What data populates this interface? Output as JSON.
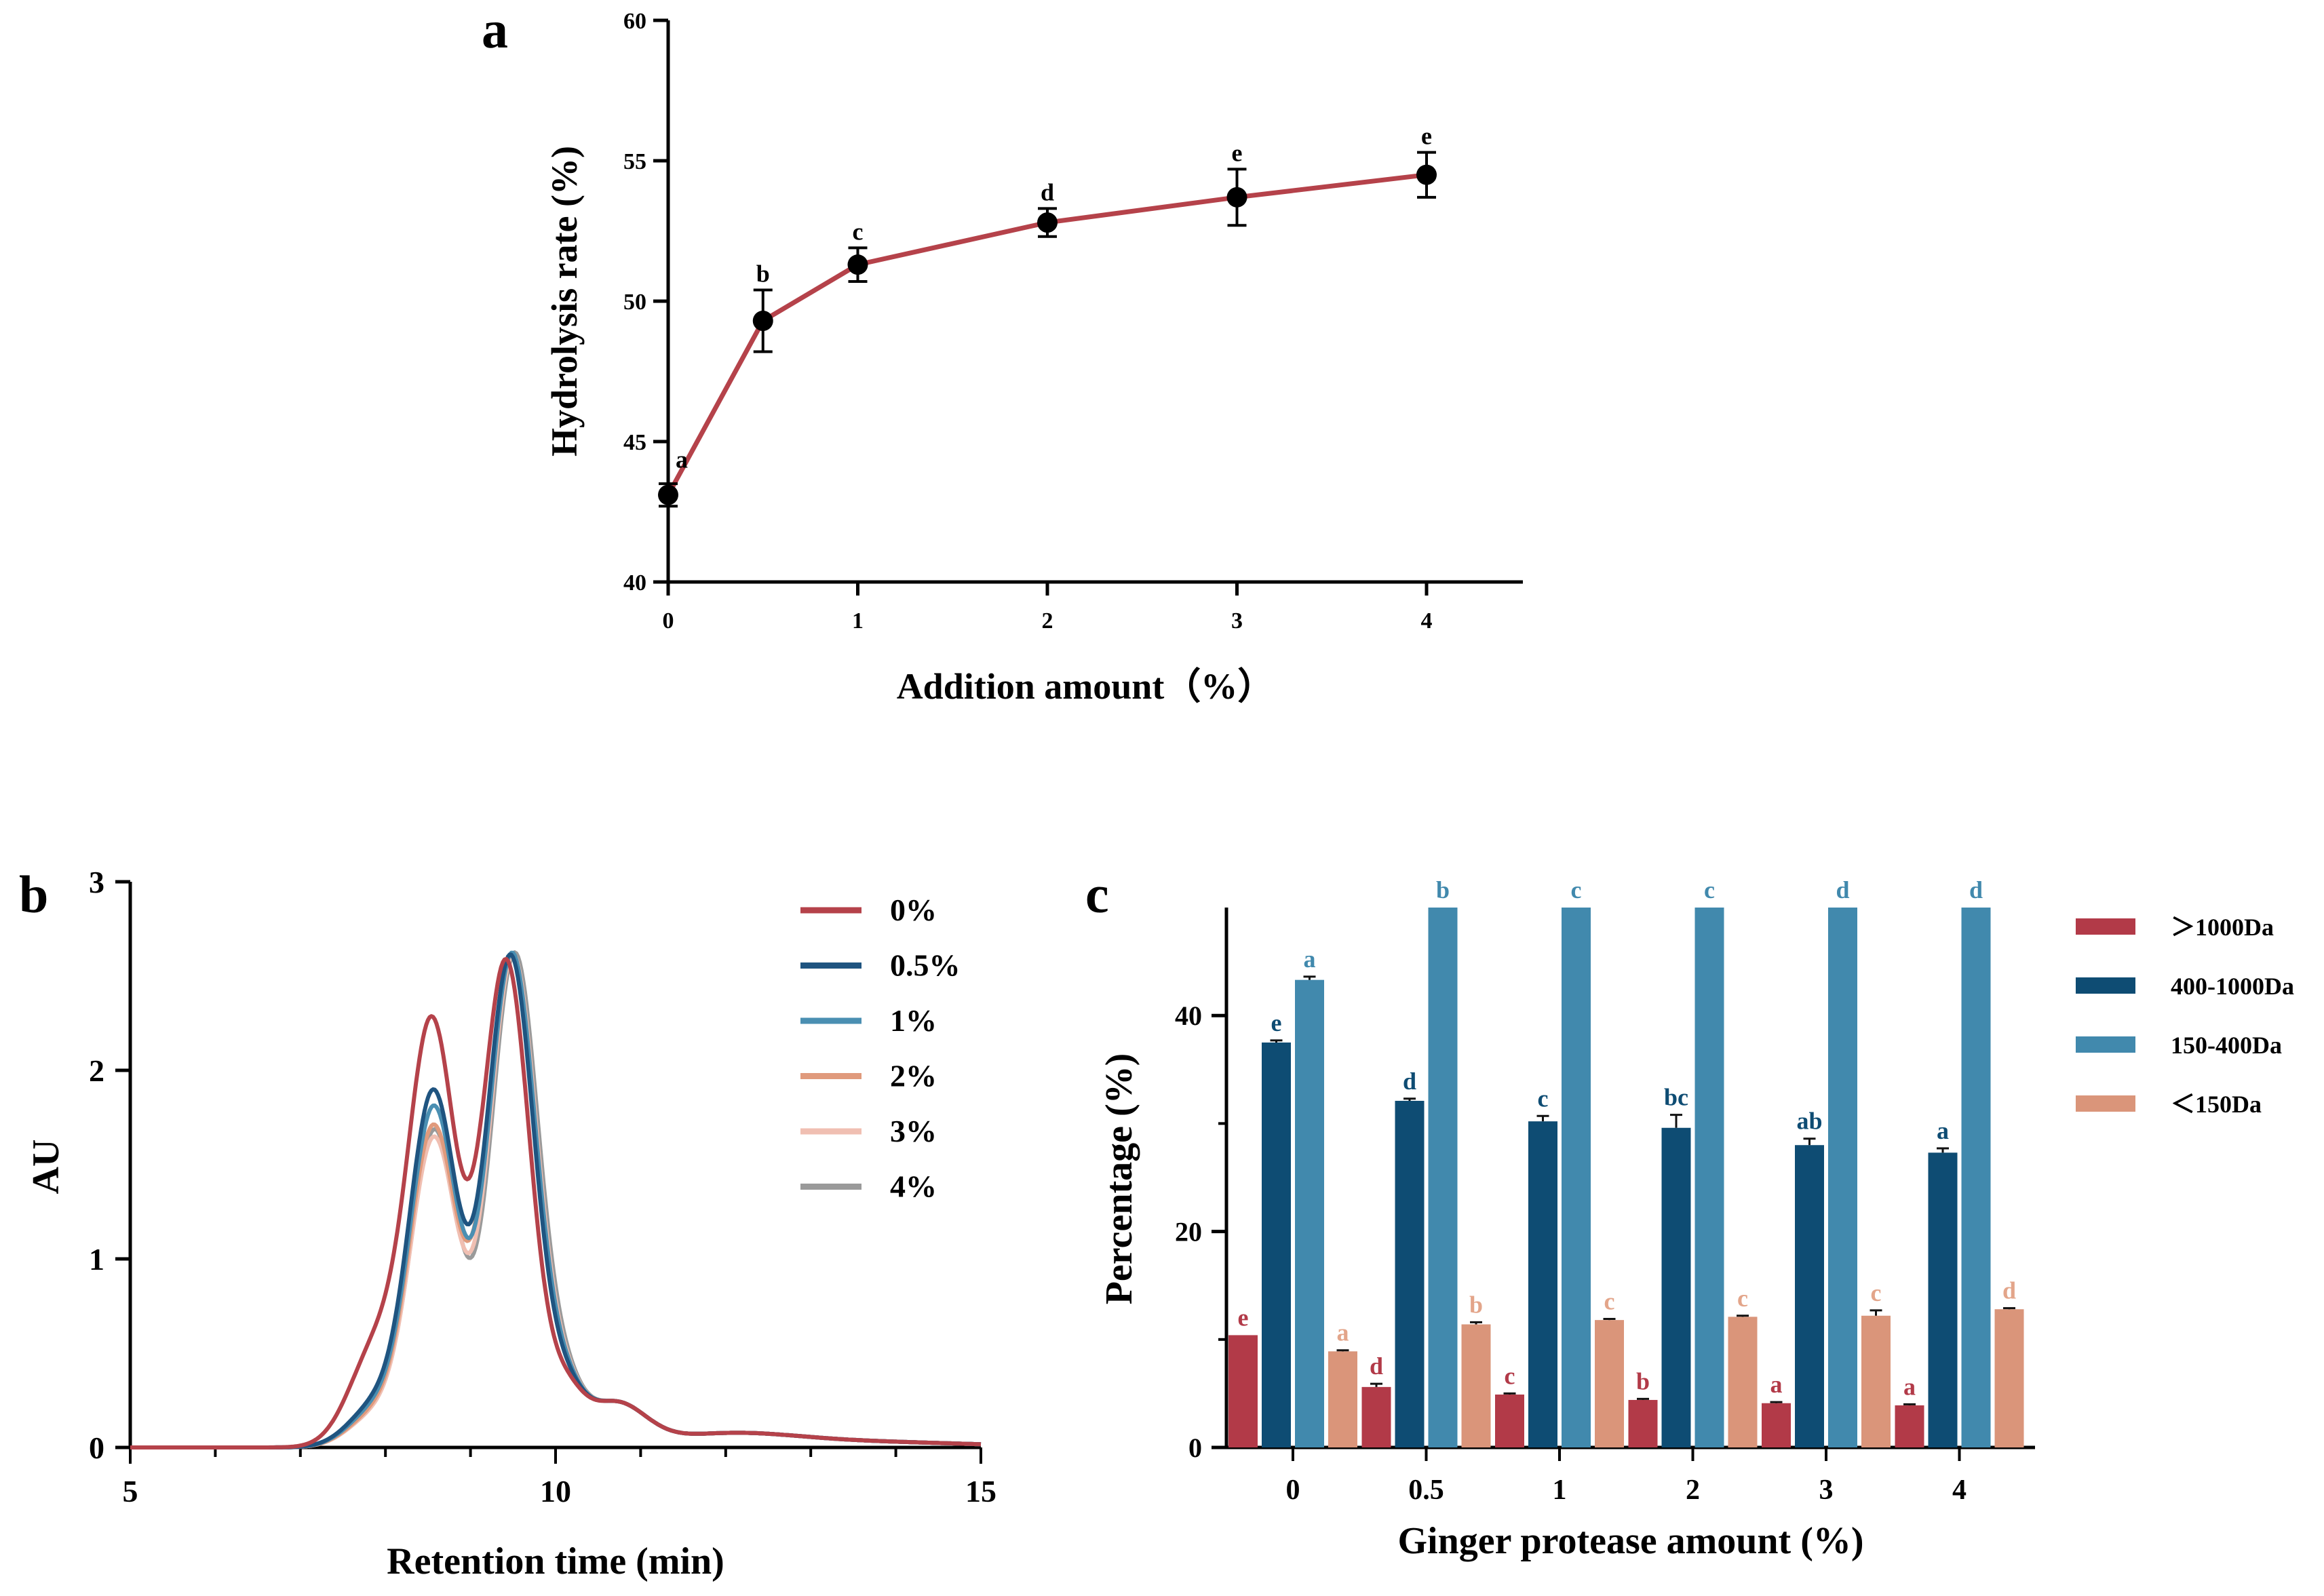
{
  "chart_data": [
    {
      "id": "a",
      "panel_label": "a",
      "type": "line",
      "xlabel": "Addition amount（%）",
      "ylabel": "Hydrolysis rate (%)",
      "ylim": [
        40,
        60
      ],
      "yticks": [
        "40",
        "45",
        "50",
        "55",
        "60"
      ],
      "xticks": [
        "0",
        "1",
        "2",
        "3",
        "4"
      ],
      "x": [
        0,
        0.5,
        1,
        2,
        3,
        4
      ],
      "y": [
        43.1,
        49.3,
        51.3,
        52.8,
        53.7,
        54.5
      ],
      "err": [
        0.4,
        1.1,
        0.6,
        0.5,
        1.0,
        0.8
      ],
      "sig": [
        "a",
        "b",
        "c",
        "d",
        "e",
        "e"
      ],
      "line_color": "#b5424a",
      "marker_color": "#000000"
    },
    {
      "id": "b",
      "panel_label": "b",
      "type": "line",
      "xlabel": "Retention time (min)",
      "ylabel": "AU",
      "xlim": [
        5,
        15
      ],
      "ylim": [
        0,
        3
      ],
      "xticks": [
        "5",
        "10",
        "15"
      ],
      "yticks": [
        "0",
        "1",
        "2",
        "3"
      ],
      "legend_position": "top-right",
      "series": [
        {
          "name": "0%",
          "color": "#b5424a",
          "shoulder": 0.52,
          "peak1": 2.2,
          "peak2": 2.57,
          "shift": 0.0
        },
        {
          "name": "0.5%",
          "color": "#1f5480",
          "shoulder": 0.22,
          "peak1": 1.86,
          "peak2": 2.6,
          "shift": 0.05
        },
        {
          "name": "1%",
          "color": "#4a8fb2",
          "shoulder": 0.2,
          "peak1": 1.78,
          "peak2": 2.61,
          "shift": 0.07
        },
        {
          "name": "2%",
          "color": "#e09a7c",
          "shoulder": 0.18,
          "peak1": 1.68,
          "peak2": 2.6,
          "shift": 0.06
        },
        {
          "name": "3%",
          "color": "#f0bfb2",
          "shoulder": 0.17,
          "peak1": 1.62,
          "peak2": 2.6,
          "shift": 0.08
        },
        {
          "name": "4%",
          "color": "#9a9a9a",
          "shoulder": 0.18,
          "peak1": 1.66,
          "peak2": 2.61,
          "shift": 0.1
        }
      ]
    },
    {
      "id": "c",
      "panel_label": "c",
      "type": "bar",
      "xlabel": "Ginger protease amount (%)",
      "ylabel": "Percentage (%)",
      "ylim": [
        0,
        50
      ],
      "yticks": [
        "0",
        "20",
        "40"
      ],
      "categories": [
        "0",
        "0.5",
        "1",
        "2",
        "3",
        "4"
      ],
      "legend_position": "right",
      "series": [
        {
          "name": "＞1000Da",
          "color": "#b23a48",
          "label_color": "#b23a48",
          "values": [
            10.4,
            5.6,
            4.9,
            4.4,
            4.1,
            3.9
          ],
          "err": [
            0.0,
            0.3,
            0.1,
            0.1,
            0.1,
            0.1
          ],
          "sig": [
            "e",
            "d",
            "c",
            "b",
            "a",
            "a"
          ]
        },
        {
          "name": "400-1000Da",
          "color": "#0e4c73",
          "label_color": "#0e4c73",
          "values": [
            37.5,
            32.1,
            30.2,
            29.6,
            28.0,
            27.3
          ],
          "err": [
            0.2,
            0.2,
            0.5,
            1.2,
            0.6,
            0.4
          ],
          "sig": [
            "e",
            "d",
            "c",
            "bc",
            "ab",
            "a"
          ]
        },
        {
          "name": "150-400Da",
          "color": "#4189ad",
          "label_color": "#4189ad",
          "values": [
            43.3,
            50,
            50,
            50,
            50,
            50
          ],
          "err": [
            0.3,
            0,
            0,
            0,
            0,
            0
          ],
          "sig": [
            "a",
            "b",
            "c",
            "c",
            "d",
            "d"
          ]
        },
        {
          "name": "＜150Da",
          "color": "#da957a",
          "label_color": "#e3a58a",
          "values": [
            8.9,
            11.4,
            11.8,
            12.1,
            12.2,
            12.8
          ],
          "err": [
            0.1,
            0.2,
            0.1,
            0.1,
            0.5,
            0.1
          ],
          "sig": [
            "a",
            "b",
            "c",
            "c",
            "c",
            "d"
          ]
        }
      ]
    }
  ]
}
